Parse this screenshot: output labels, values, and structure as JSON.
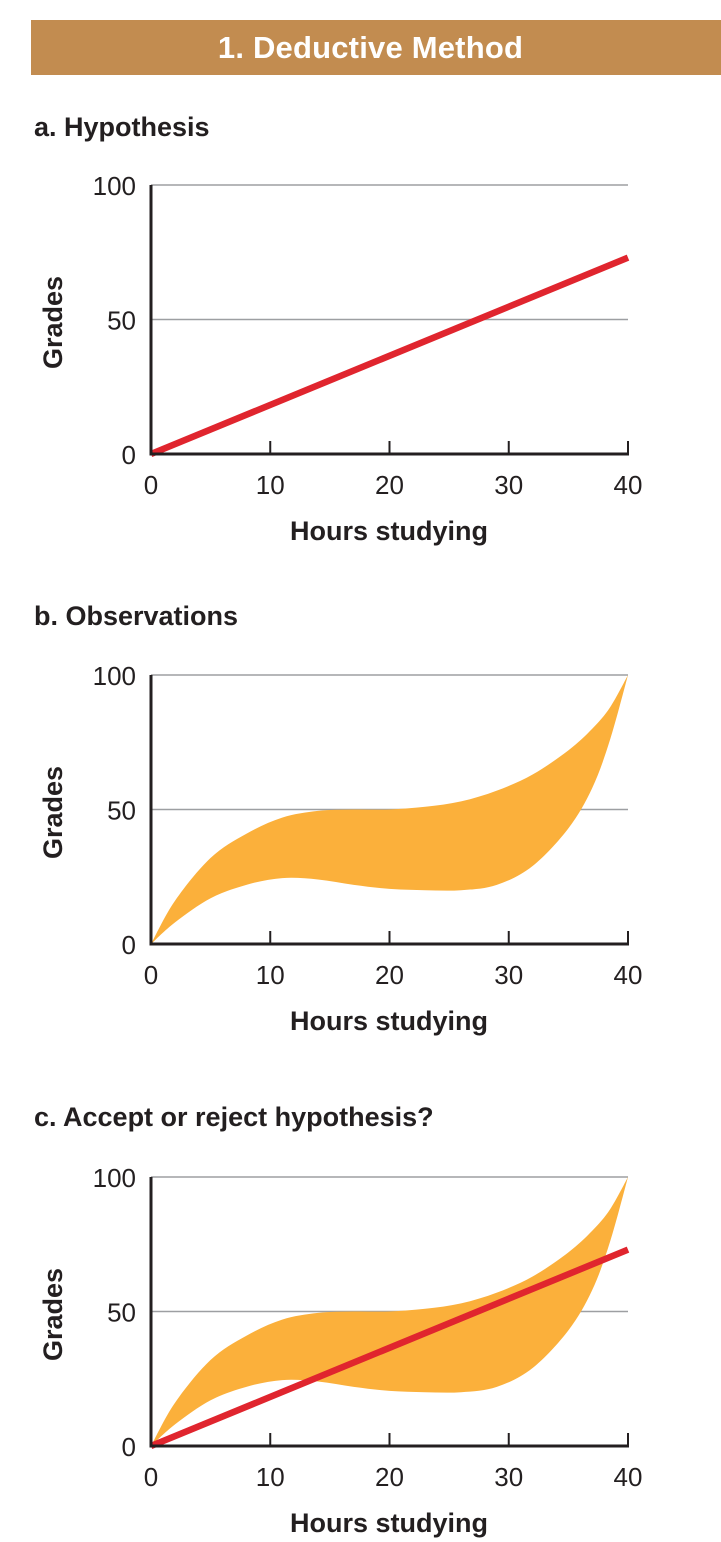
{
  "header": {
    "title": "1. Deductive Method",
    "accent_color": "#c28c50"
  },
  "chart_data": [
    {
      "type": "line",
      "title": "a. Hypothesis",
      "xlabel": "Hours studying",
      "ylabel": "Grades",
      "xlim": [
        0,
        40
      ],
      "ylim": [
        0,
        100
      ],
      "xticks": [
        0,
        10,
        20,
        30,
        40
      ],
      "yticks": [
        0,
        50,
        100
      ],
      "grid": "horizontal",
      "line": {
        "x": [
          0,
          40
        ],
        "y": [
          0,
          73
        ],
        "color": "#e0252e"
      },
      "band": null
    },
    {
      "type": "area",
      "title": "b. Observations",
      "xlabel": "Hours studying",
      "ylabel": "Grades",
      "xlim": [
        0,
        40
      ],
      "ylim": [
        0,
        100
      ],
      "xticks": [
        0,
        10,
        20,
        30,
        40
      ],
      "yticks": [
        0,
        50,
        100
      ],
      "grid": "horizontal",
      "line": null,
      "band": {
        "color": "#fbb03b",
        "x": [
          0,
          2,
          5,
          8,
          11,
          14,
          17,
          20,
          23,
          26,
          29,
          32,
          35,
          37,
          38.5,
          40
        ],
        "upper": [
          0,
          16,
          32,
          41,
          47,
          49.5,
          50,
          50,
          51,
          53,
          57,
          63,
          72,
          80,
          88,
          100
        ],
        "lower": [
          0,
          8,
          17,
          22,
          24.5,
          24,
          22,
          20.5,
          20,
          20,
          22,
          29,
          43,
          58,
          76,
          100
        ]
      }
    },
    {
      "type": "area",
      "title": "c. Accept or reject hypothesis?",
      "xlabel": "Hours studying",
      "ylabel": "Grades",
      "xlim": [
        0,
        40
      ],
      "ylim": [
        0,
        100
      ],
      "xticks": [
        0,
        10,
        20,
        30,
        40
      ],
      "yticks": [
        0,
        50,
        100
      ],
      "grid": "horizontal",
      "line": {
        "x": [
          0,
          40
        ],
        "y": [
          0,
          73
        ],
        "color": "#e0252e"
      },
      "band": {
        "color": "#fbb03b",
        "x": [
          0,
          2,
          5,
          8,
          11,
          14,
          17,
          20,
          23,
          26,
          29,
          32,
          35,
          37,
          38.5,
          40
        ],
        "upper": [
          0,
          16,
          32,
          41,
          47,
          49.5,
          50,
          50,
          51,
          53,
          57,
          63,
          72,
          80,
          88,
          100
        ],
        "lower": [
          0,
          8,
          17,
          22,
          24.5,
          24,
          22,
          20.5,
          20,
          20,
          22,
          29,
          43,
          58,
          76,
          100
        ]
      }
    }
  ]
}
